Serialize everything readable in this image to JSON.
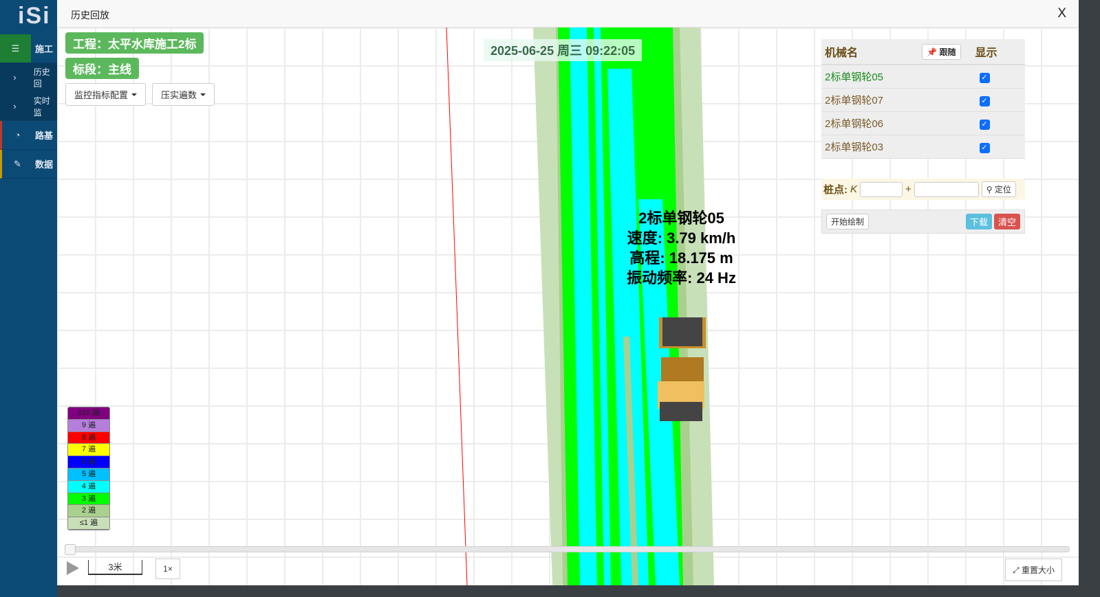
{
  "sidebar": {
    "logo": "iSi",
    "items": [
      {
        "icon": "list-icon",
        "label": "施工"
      },
      {
        "icon": "chevron-right-icon",
        "label": "历史回"
      },
      {
        "icon": "chevron-right-icon",
        "label": "实时监"
      },
      {
        "icon": "dashboard-icon",
        "label": "路基"
      },
      {
        "icon": "edit-icon",
        "label": "数据"
      }
    ]
  },
  "modal": {
    "title": "历史回放",
    "close": "X"
  },
  "project_badge": "工程：太平水库施工2标",
  "section_badge": "标段：主线",
  "dropdowns": [
    "监控指标配置",
    "压实遍数"
  ],
  "timestamp": "2025-06-25 周三 09:22:05",
  "vehicle_info": {
    "name": "2标单钢轮05",
    "speed": "速度: 3.79 km/h",
    "elevation": "高程: 18.175 m",
    "frequency": "振动频率:  24 Hz"
  },
  "panel": {
    "col_name": "机械名",
    "follow": "跟随",
    "col_show": "显示",
    "machines": [
      {
        "name": "2标单钢轮05",
        "shown": true,
        "active": true
      },
      {
        "name": "2标单钢轮07",
        "shown": true
      },
      {
        "name": "2标单钢轮06",
        "shown": true
      },
      {
        "name": "2标单钢轮03",
        "shown": true
      }
    ],
    "stake_label": "桩点:",
    "stake_k": "K",
    "stake_plus": "+",
    "locate": "定位",
    "start_draw": "开始绘制",
    "download": "下载",
    "clear": "清空"
  },
  "legend": [
    {
      "label": "≥10 遍",
      "color": "#800080"
    },
    {
      "label": "9 遍",
      "color": "#b57edc"
    },
    {
      "label": "8 遍",
      "color": "#ff0000"
    },
    {
      "label": "7 遍",
      "color": "#ffff00"
    },
    {
      "label": "6 遍",
      "color": "#0000ff"
    },
    {
      "label": "5 遍",
      "color": "#00bfff"
    },
    {
      "label": "4 遍",
      "color": "#00ffff"
    },
    {
      "label": "3 遍",
      "color": "#00ff00"
    },
    {
      "label": "2 遍",
      "color": "#aad08f"
    },
    {
      "label": "≤1 遍",
      "color": "#c8e0b8"
    }
  ],
  "playback": {
    "progress": 0,
    "scale": "3米",
    "speed": "1×",
    "resize": "重置大小"
  }
}
